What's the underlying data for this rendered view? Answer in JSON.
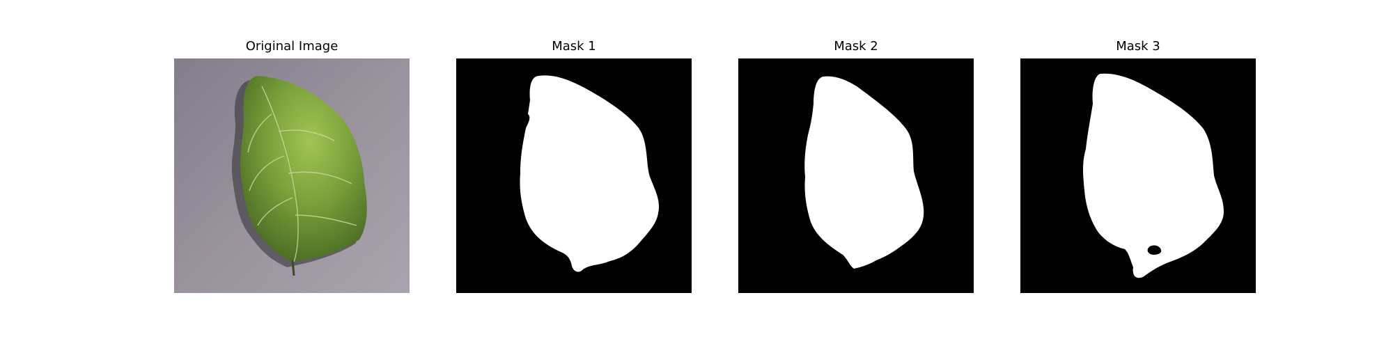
{
  "figure": {
    "panels": [
      {
        "title": "Original Image",
        "kind": "photo",
        "subject": "leaf-photo"
      },
      {
        "title": "Mask 1",
        "kind": "mask"
      },
      {
        "title": "Mask 2",
        "kind": "mask"
      },
      {
        "title": "Mask 3",
        "kind": "mask"
      }
    ]
  },
  "colors": {
    "background": "#ffffff",
    "mask_background": "#000000",
    "mask_foreground": "#ffffff",
    "leaf_dark": "#3f6120",
    "leaf_light": "#8fb44a",
    "surface": "#9c95a0"
  }
}
